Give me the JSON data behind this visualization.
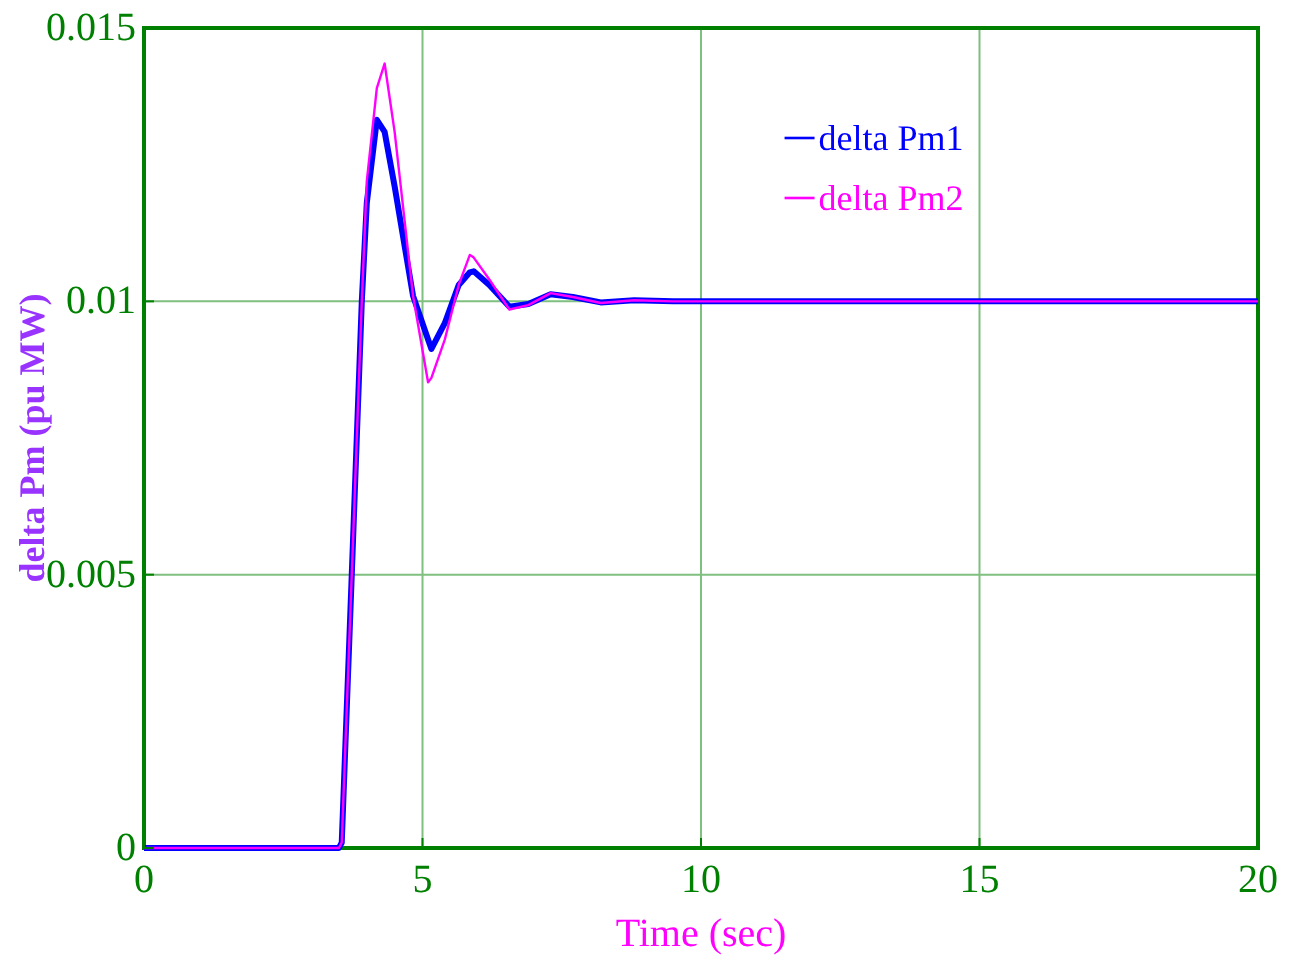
{
  "chart_data": {
    "type": "line",
    "xlabel": "Time (sec)",
    "ylabel": "delta Pm (pu MW)",
    "xlim": [
      0,
      20
    ],
    "ylim": [
      0,
      0.015
    ],
    "xticks": [
      0,
      5,
      10,
      15,
      20
    ],
    "yticks": [
      0,
      0.005,
      0.01,
      0.015
    ],
    "grid": true,
    "legend": "top right",
    "line_style": "solid",
    "x": [
      0,
      3.5,
      3.55,
      3.73,
      3.91,
      4.0,
      4.18,
      4.32,
      4.5,
      4.83,
      5.1,
      5.16,
      5.4,
      5.65,
      5.85,
      5.92,
      6.2,
      6.56,
      6.9,
      7.3,
      7.7,
      8.2,
      8.8,
      9.5,
      12,
      16,
      20
    ],
    "series": [
      {
        "name": "delta Pm1",
        "color": "#0000ff",
        "values": [
          0,
          0,
          0.0001,
          0.005,
          0.01,
          0.0118,
          0.01332,
          0.0131,
          0.0121,
          0.0101,
          0.0093,
          0.00913,
          0.0096,
          0.0103,
          0.01053,
          0.01055,
          0.0103,
          0.0099,
          0.00995,
          0.01013,
          0.01008,
          0.00998,
          0.01002,
          0.01,
          0.01,
          0.01,
          0.01
        ]
      },
      {
        "name": "delta Pm2",
        "color": "#ff00ff",
        "values": [
          0,
          0,
          0.0001,
          0.005,
          0.01,
          0.0122,
          0.0139,
          0.01435,
          0.0131,
          0.0101,
          0.00852,
          0.0086,
          0.0093,
          0.0103,
          0.01085,
          0.0108,
          0.0104,
          0.00985,
          0.00993,
          0.01015,
          0.01008,
          0.00997,
          0.01002,
          0.01,
          0.01,
          0.01,
          0.01
        ]
      }
    ]
  }
}
